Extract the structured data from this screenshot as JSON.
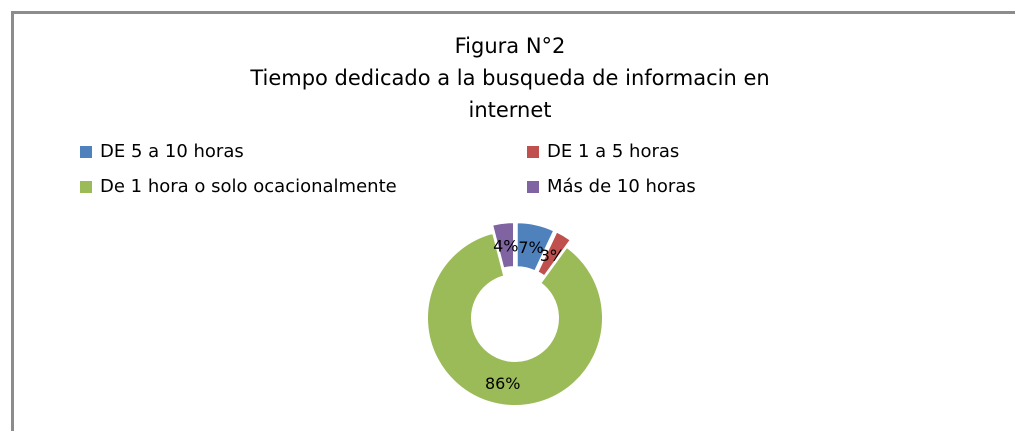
{
  "chart_data": {
    "type": "donut",
    "title": "Figura N°2",
    "subtitle": "Tiempo dedicado a la busqueda de informacin en internet",
    "categories": [
      "DE 5 a 10 horas",
      "DE 1 a 5 horas",
      "De 1 hora o solo ocacionalmente",
      "Más de 10 horas"
    ],
    "values": [
      7,
      3,
      86,
      4
    ],
    "value_labels": [
      "7%",
      "3%",
      "86%",
      "4%"
    ],
    "colors": [
      "#4f81bd",
      "#c0504d",
      "#9bbb59",
      "#8064a2"
    ],
    "legend": "top"
  }
}
